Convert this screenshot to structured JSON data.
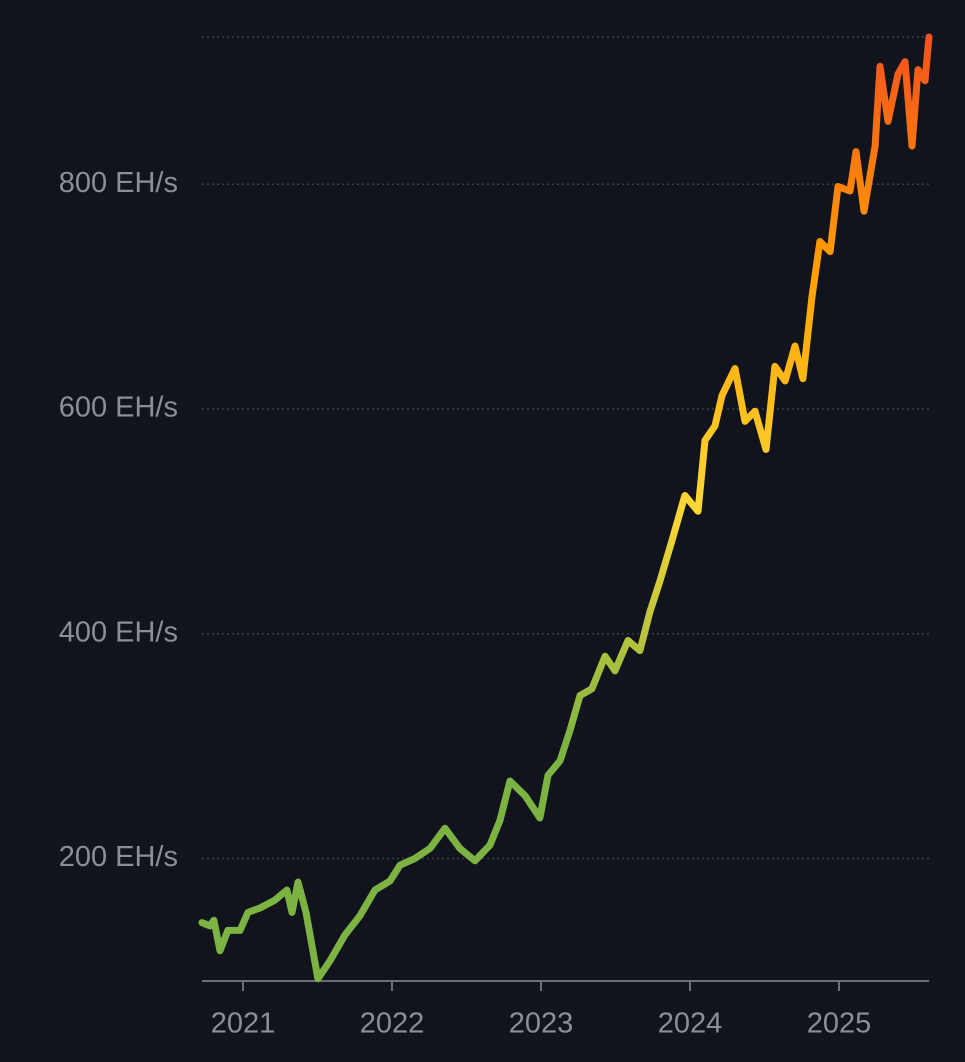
{
  "chart_data": {
    "type": "line",
    "x": [
      2020.725,
      2020.779,
      2020.805,
      2020.846,
      2020.899,
      2020.98,
      2021.034,
      2021.114,
      2021.215,
      2021.295,
      2021.329,
      2021.369,
      2021.423,
      2021.503,
      2021.584,
      2021.685,
      2021.785,
      2021.886,
      2021.987,
      2022.054,
      2022.154,
      2022.255,
      2022.356,
      2022.456,
      2022.557,
      2022.658,
      2022.725,
      2022.792,
      2022.893,
      2022.993,
      2023.047,
      2023.128,
      2023.195,
      2023.262,
      2023.342,
      2023.43,
      2023.497,
      2023.584,
      2023.664,
      2023.732,
      2023.799,
      2023.879,
      2023.966,
      2024.054,
      2024.101,
      2024.168,
      2024.215,
      2024.302,
      2024.369,
      2024.436,
      2024.51,
      2024.57,
      2024.638,
      2024.705,
      2024.758,
      2024.819,
      2024.872,
      2024.94,
      2024.993,
      2025.074,
      2025.114,
      2025.168,
      2025.242,
      2025.275,
      2025.329,
      2025.396,
      2025.443,
      2025.49,
      2025.53,
      2025.577,
      2025.604
    ],
    "series": [
      {
        "gradient": [
          "#7cb342",
          "#7cb342",
          "#fdd835",
          "#ffa000",
          "#f4511e"
        ],
        "values": [
          143,
          140,
          145,
          118,
          136,
          136,
          152,
          156,
          163,
          172,
          152,
          179,
          152,
          93,
          109,
          132,
          149,
          172,
          180,
          194,
          200,
          209,
          227,
          209,
          198,
          212,
          234,
          269,
          256,
          236,
          274,
          287,
          314,
          345,
          351,
          380,
          367,
          394,
          385,
          420,
          447,
          483,
          523,
          509,
          572,
          585,
          612,
          636,
          589,
          598,
          564,
          638,
          625,
          656,
          627,
          700,
          749,
          740,
          798,
          794,
          829,
          776,
          834,
          905,
          856,
          898,
          909,
          834,
          902,
          892,
          931
        ]
      }
    ],
    "xlim": [
      2020.725,
      2025.604
    ],
    "xticks": [
      2021,
      2022,
      2023,
      2024,
      2025
    ],
    "ylim": [
      91,
      931
    ],
    "yticks": [
      {
        "value": 200,
        "label": "200 EH/s"
      },
      {
        "value": 400,
        "label": "400 EH/s"
      },
      {
        "value": 600,
        "label": "600 EH/s"
      },
      {
        "value": 800,
        "label": "800 EH/s"
      }
    ],
    "grid": true
  }
}
